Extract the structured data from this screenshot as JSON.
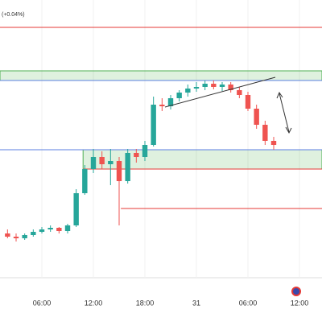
{
  "chart_data": {
    "type": "candlestick",
    "header_text": "(+0.04%)",
    "x": [
      2,
      3,
      4,
      5,
      6,
      7,
      8,
      9,
      10,
      11,
      12,
      13,
      14,
      15,
      16,
      17,
      18,
      19,
      20,
      21,
      22,
      23,
      24,
      25,
      26,
      27,
      28,
      29,
      30,
      31,
      32,
      33
    ],
    "open": [
      110,
      106,
      104,
      108,
      112,
      115,
      117,
      113,
      120,
      160,
      190,
      205,
      196,
      200,
      175,
      210,
      205,
      220,
      270,
      268,
      278,
      285,
      290,
      292,
      296,
      292,
      295,
      288,
      282,
      265,
      245,
      225
    ],
    "high": [
      115,
      110,
      110,
      115,
      118,
      120,
      118,
      122,
      165,
      195,
      215,
      212,
      215,
      205,
      215,
      215,
      225,
      280,
      278,
      282,
      288,
      295,
      298,
      300,
      300,
      298,
      298,
      292,
      286,
      270,
      250,
      230
    ],
    "low": [
      104,
      100,
      102,
      106,
      110,
      112,
      110,
      110,
      118,
      158,
      185,
      190,
      170,
      120,
      172,
      198,
      200,
      218,
      262,
      264,
      274,
      280,
      286,
      288,
      289,
      287,
      285,
      278,
      262,
      240,
      220,
      214
    ],
    "close": [
      106,
      104,
      108,
      112,
      115,
      117,
      113,
      120,
      160,
      190,
      205,
      196,
      200,
      175,
      210,
      205,
      220,
      270,
      268,
      278,
      285,
      290,
      292,
      296,
      292,
      295,
      288,
      282,
      265,
      245,
      225,
      220
    ],
    "up_color": "#26a69a",
    "down_color": "#ef5350",
    "xlim": [
      1.125,
      38.625
    ],
    "ylim": [
      55,
      400
    ],
    "xticks": [
      {
        "value": 6,
        "label": "06:00"
      },
      {
        "value": 12,
        "label": "12:00"
      },
      {
        "value": 18,
        "label": "18:00"
      },
      {
        "value": 24,
        "label": "31"
      },
      {
        "value": 30,
        "label": "06:00"
      },
      {
        "value": 36,
        "label": "12:00"
      }
    ],
    "grid": true,
    "zones": [
      {
        "low": 300,
        "high": 312,
        "from": 1.125,
        "color": "#4caf50"
      },
      {
        "low": 190,
        "high": 214,
        "from": 10.8,
        "color": "#4caf50"
      }
    ],
    "levels": [
      {
        "value": 366,
        "from": 1.125,
        "color": "#e53935"
      },
      {
        "value": 300,
        "from": 1.125,
        "color": "#5b7fe0"
      },
      {
        "value": 214,
        "from": 1.125,
        "color": "#5b7fe0"
      },
      {
        "value": 190,
        "from": 10.8,
        "color": "#e53935"
      },
      {
        "value": 141,
        "from": 15.2,
        "color": "#e53935"
      }
    ]
  }
}
